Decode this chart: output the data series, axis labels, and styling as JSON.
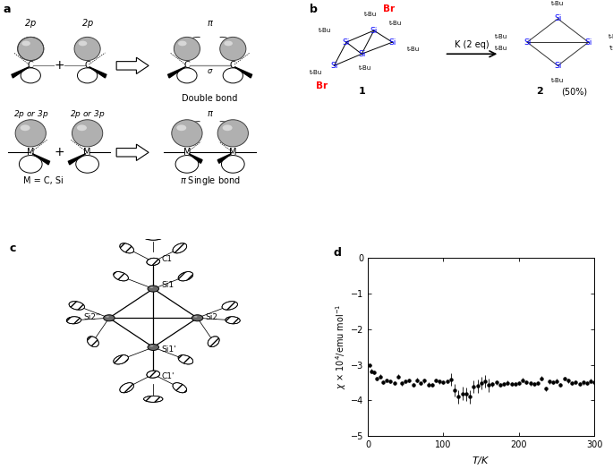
{
  "panel_d": {
    "xlim": [
      0,
      300
    ],
    "ylim": [
      -5,
      0
    ],
    "yticks": [
      0,
      -1,
      -2,
      -3,
      -4,
      -5
    ],
    "xticks": [
      0,
      100,
      200,
      300
    ]
  },
  "layout": {
    "fig_width": 6.85,
    "fig_height": 5.24,
    "dpi": 100
  }
}
